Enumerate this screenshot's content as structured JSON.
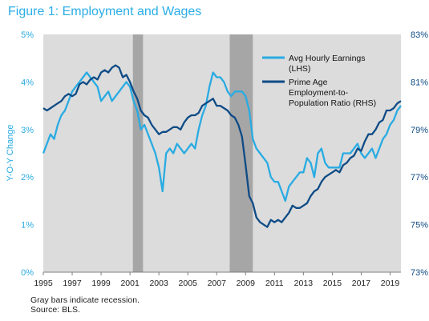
{
  "chart_data": {
    "type": "line",
    "title": "Figure 1: Employment and Wages",
    "ylabel": "Y-O-Y Change",
    "ylim": [
      0,
      5
    ],
    "y2lim": [
      73,
      83
    ],
    "xlim": [
      1995,
      2019.75
    ],
    "y_ticks": [
      "0%",
      "1%",
      "2%",
      "3%",
      "4%",
      "5%"
    ],
    "y2_ticks": [
      "73%",
      "75%",
      "77%",
      "79%",
      "81%",
      "83%"
    ],
    "x_ticks": [
      "1995",
      "1997",
      "1999",
      "2001",
      "2003",
      "2005",
      "2007",
      "2009",
      "2011",
      "2013",
      "2015",
      "2017",
      "2019"
    ],
    "grid": false,
    "legend_position": "top-right",
    "recessions": [
      [
        2001.2,
        2001.9
      ],
      [
        2007.9,
        2009.5
      ]
    ],
    "colors": {
      "background": "#dcdcdc",
      "recession": "#a6a6a6",
      "earnings": "#29abe2",
      "employment": "#0e4b86",
      "title": "#2aaee6",
      "axis_text": "#222222"
    },
    "series": [
      {
        "name": "Avg Hourly Earnings (LHS)",
        "axis": "left",
        "x": [
          1995.0,
          1995.25,
          1995.5,
          1995.75,
          1996.0,
          1996.25,
          1996.5,
          1996.75,
          1997.0,
          1997.25,
          1997.5,
          1997.75,
          1998.0,
          1998.25,
          1998.5,
          1998.75,
          1999.0,
          1999.25,
          1999.5,
          1999.75,
          2000.0,
          2000.25,
          2000.5,
          2000.75,
          2001.0,
          2001.25,
          2001.5,
          2001.75,
          2002.0,
          2002.25,
          2002.5,
          2002.75,
          2003.0,
          2003.25,
          2003.5,
          2003.75,
          2004.0,
          2004.25,
          2004.5,
          2004.75,
          2005.0,
          2005.25,
          2005.5,
          2005.75,
          2006.0,
          2006.25,
          2006.5,
          2006.75,
          2007.0,
          2007.25,
          2007.5,
          2007.75,
          2008.0,
          2008.25,
          2008.5,
          2008.75,
          2009.0,
          2009.25,
          2009.5,
          2009.75,
          2010.0,
          2010.25,
          2010.5,
          2010.75,
          2011.0,
          2011.25,
          2011.5,
          2011.75,
          2012.0,
          2012.25,
          2012.5,
          2012.75,
          2013.0,
          2013.25,
          2013.5,
          2013.75,
          2014.0,
          2014.25,
          2014.5,
          2014.75,
          2015.0,
          2015.25,
          2015.5,
          2015.75,
          2016.0,
          2016.25,
          2016.5,
          2016.75,
          2017.0,
          2017.25,
          2017.5,
          2017.75,
          2018.0,
          2018.25,
          2018.5,
          2018.75,
          2019.0,
          2019.25,
          2019.5,
          2019.75
        ],
        "values": [
          2.5,
          2.7,
          2.9,
          2.8,
          3.1,
          3.3,
          3.4,
          3.6,
          3.8,
          3.9,
          4.0,
          4.1,
          4.2,
          4.1,
          4.0,
          3.9,
          3.6,
          3.7,
          3.8,
          3.6,
          3.7,
          3.8,
          3.9,
          4.0,
          3.9,
          3.6,
          3.4,
          3.0,
          3.1,
          2.9,
          2.7,
          2.5,
          2.2,
          1.7,
          2.5,
          2.6,
          2.5,
          2.7,
          2.6,
          2.5,
          2.6,
          2.7,
          2.6,
          3.0,
          3.3,
          3.5,
          3.9,
          4.2,
          4.1,
          4.1,
          4.0,
          3.8,
          3.7,
          3.8,
          3.8,
          3.8,
          3.7,
          3.4,
          2.8,
          2.6,
          2.5,
          2.4,
          2.3,
          2.0,
          1.9,
          1.9,
          1.7,
          1.5,
          1.8,
          1.9,
          2.0,
          2.1,
          2.1,
          2.4,
          2.3,
          2.0,
          2.5,
          2.6,
          2.3,
          2.2,
          2.2,
          2.2,
          2.2,
          2.5,
          2.5,
          2.5,
          2.6,
          2.7,
          2.5,
          2.4,
          2.5,
          2.6,
          2.4,
          2.6,
          2.8,
          2.9,
          3.1,
          3.2,
          3.4,
          3.5
        ]
      },
      {
        "name": "Prime Age Employment-to-Population Ratio (RHS)",
        "axis": "right",
        "x": [
          1995.0,
          1995.25,
          1995.5,
          1995.75,
          1996.0,
          1996.25,
          1996.5,
          1996.75,
          1997.0,
          1997.25,
          1997.5,
          1997.75,
          1998.0,
          1998.25,
          1998.5,
          1998.75,
          1999.0,
          1999.25,
          1999.5,
          1999.75,
          2000.0,
          2000.25,
          2000.5,
          2000.75,
          2001.0,
          2001.25,
          2001.5,
          2001.75,
          2002.0,
          2002.25,
          2002.5,
          2002.75,
          2003.0,
          2003.25,
          2003.5,
          2003.75,
          2004.0,
          2004.25,
          2004.5,
          2004.75,
          2005.0,
          2005.25,
          2005.5,
          2005.75,
          2006.0,
          2006.25,
          2006.5,
          2006.75,
          2007.0,
          2007.25,
          2007.5,
          2007.75,
          2008.0,
          2008.25,
          2008.5,
          2008.75,
          2009.0,
          2009.25,
          2009.5,
          2009.75,
          2010.0,
          2010.25,
          2010.5,
          2010.75,
          2011.0,
          2011.25,
          2011.5,
          2011.75,
          2012.0,
          2012.25,
          2012.5,
          2012.75,
          2013.0,
          2013.25,
          2013.5,
          2013.75,
          2014.0,
          2014.25,
          2014.5,
          2014.75,
          2015.0,
          2015.25,
          2015.5,
          2015.75,
          2016.0,
          2016.25,
          2016.5,
          2016.75,
          2017.0,
          2017.25,
          2017.5,
          2017.75,
          2018.0,
          2018.25,
          2018.5,
          2018.75,
          2019.0,
          2019.25,
          2019.5,
          2019.75
        ],
        "values": [
          79.9,
          79.8,
          79.9,
          80.0,
          80.1,
          80.2,
          80.4,
          80.5,
          80.4,
          80.5,
          80.9,
          81.0,
          80.9,
          81.1,
          81.2,
          81.1,
          81.4,
          81.5,
          81.4,
          81.6,
          81.7,
          81.6,
          81.2,
          81.3,
          81.0,
          80.6,
          80.3,
          79.8,
          79.6,
          79.5,
          79.2,
          79.0,
          78.8,
          78.9,
          78.9,
          79.0,
          79.1,
          79.1,
          79.0,
          79.3,
          79.5,
          79.6,
          79.6,
          79.7,
          80.0,
          80.1,
          80.2,
          80.3,
          80.0,
          80.0,
          79.9,
          79.8,
          79.6,
          79.5,
          79.2,
          78.7,
          77.5,
          76.2,
          75.9,
          75.3,
          75.1,
          75.0,
          74.9,
          75.2,
          75.1,
          75.2,
          75.1,
          75.3,
          75.5,
          75.8,
          75.7,
          75.7,
          75.8,
          75.9,
          76.2,
          76.4,
          76.5,
          76.8,
          77.0,
          77.1,
          77.2,
          77.3,
          77.2,
          77.5,
          77.6,
          77.8,
          77.9,
          78.2,
          78.1,
          78.5,
          78.8,
          78.8,
          79.0,
          79.3,
          79.4,
          79.8,
          79.8,
          79.9,
          80.1,
          80.2
        ]
      }
    ]
  },
  "footnote": {
    "line1": "Gray bars indicate recession.",
    "line2": "Source: BLS."
  }
}
